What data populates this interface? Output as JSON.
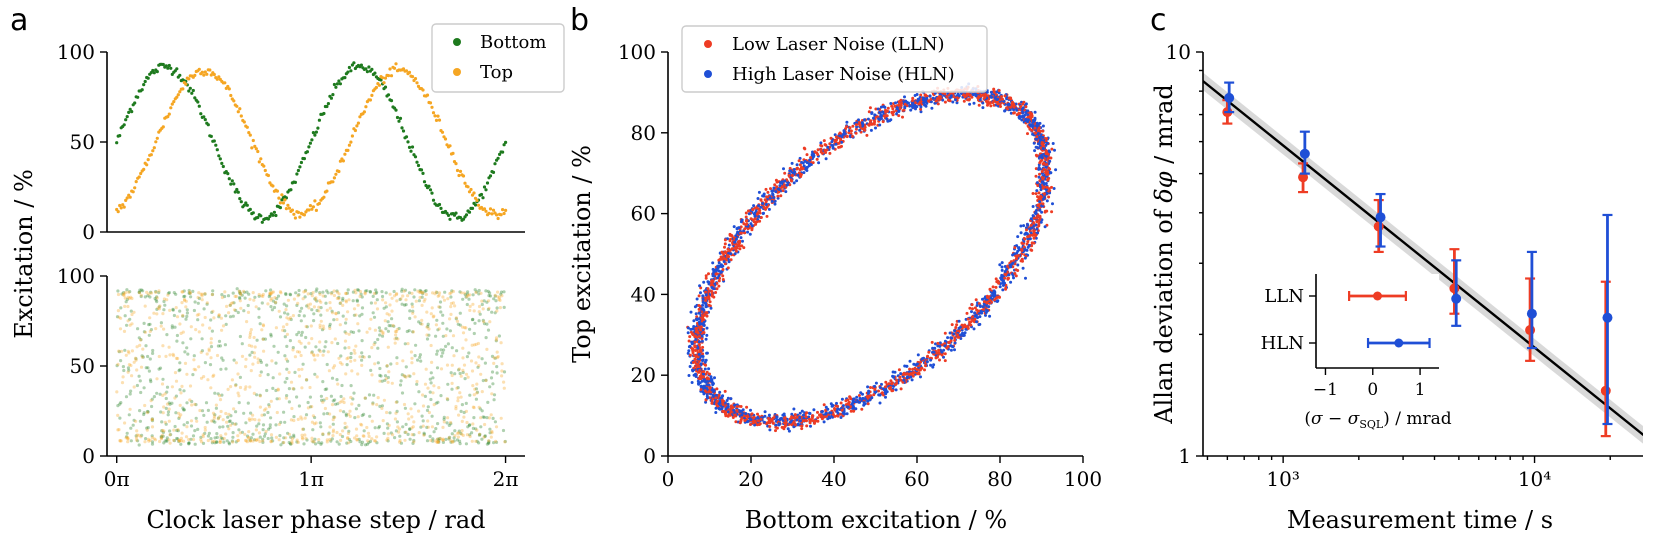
{
  "figure": {
    "panel_labels": [
      "a",
      "b",
      "c"
    ]
  },
  "colors": {
    "bottom": "#1e7a1e",
    "top": "#f5a623",
    "lln": "#ee3c24",
    "hln": "#1f4fd6",
    "fit": "#000000",
    "band": "#bfbfbf"
  },
  "chart_data": [
    {
      "id": "a-top",
      "type": "line",
      "title": "",
      "xlabel": "",
      "ylabel": "Excitation / %",
      "xlim": [
        -0.05,
        2.1
      ],
      "ylim": [
        0,
        100
      ],
      "yticks": [
        0,
        50,
        100
      ],
      "xticks": [],
      "legend": [
        "Bottom",
        "Top"
      ],
      "legend_position": "top-right",
      "series": [
        {
          "name": "Bottom",
          "offset": 50,
          "amplitude": 42,
          "phase": 0.25,
          "period": 1.0,
          "n": 260
        },
        {
          "name": "Top",
          "offset": 50,
          "amplitude": 40,
          "phase": 0.45,
          "period": 1.0,
          "n": 260
        }
      ]
    },
    {
      "id": "a-bottom",
      "type": "scatter",
      "xlabel": "Clock laser phase step / rad",
      "ylabel": "Excitation / %",
      "xlim": [
        -0.05,
        2.1
      ],
      "ylim": [
        0,
        100
      ],
      "yticks": [
        0,
        50,
        100
      ],
      "xticks": [
        0,
        1,
        2
      ],
      "xtick_labels": [
        "0π",
        "1π",
        "2π"
      ],
      "series": [
        {
          "name": "Bottom",
          "range": [
            7,
            92
          ],
          "n": 900
        },
        {
          "name": "Top",
          "range": [
            8,
            91
          ],
          "n": 900
        }
      ]
    },
    {
      "id": "b",
      "type": "scatter",
      "xlabel": "Bottom excitation / %",
      "ylabel": "Top excitation / %",
      "xlim": [
        0,
        100
      ],
      "ylim": [
        0,
        100
      ],
      "xticks": [
        0,
        20,
        40,
        60,
        80,
        100
      ],
      "yticks": [
        0,
        20,
        40,
        60,
        80,
        100
      ],
      "legend": [
        "Low Laser Noise (LLN)",
        "High Laser Noise (HLN)"
      ],
      "legend_position": "top-left",
      "ellipse": {
        "offset_x": 49,
        "amplitude_x": 42,
        "offset_y": 49,
        "amplitude_y": 40.5,
        "phase_diff_rad": 1.0
      },
      "series": [
        {
          "name": "Low Laser Noise (LLN)",
          "n": 1700,
          "noise": 0.9
        },
        {
          "name": "High Laser Noise (HLN)",
          "n": 1700,
          "noise": 1.0
        }
      ]
    },
    {
      "id": "c",
      "type": "scatter",
      "xscale": "log",
      "yscale": "log",
      "xlabel": "Measurement time / s",
      "ylabel": "Allan deviation of δφ / mrad",
      "xlim": [
        480,
        27000
      ],
      "ylim": [
        1,
        10
      ],
      "xticks": [
        1000,
        10000
      ],
      "xtick_labels": [
        "10³",
        "10⁴"
      ],
      "yticks": [
        1,
        10
      ],
      "ytick_labels": [
        "1",
        "10"
      ],
      "fit": {
        "tau0": 500,
        "y0": 8.3,
        "slope": -0.5
      },
      "series": [
        {
          "name": "LLN",
          "x": [
            600,
            1200,
            2400,
            4800,
            9600,
            19200
          ],
          "y": [
            7.1,
            4.9,
            3.7,
            2.6,
            2.05,
            1.45
          ],
          "err_low": [
            6.65,
            4.5,
            3.2,
            2.25,
            1.72,
            1.12
          ],
          "err_high": [
            7.6,
            5.3,
            4.3,
            3.25,
            2.75,
            2.7
          ]
        },
        {
          "name": "HLN",
          "x": [
            610,
            1220,
            2440,
            4880,
            9760,
            19500
          ],
          "y": [
            7.7,
            5.6,
            3.9,
            2.45,
            2.25,
            2.2
          ],
          "err_low": [
            7.1,
            5.0,
            3.3,
            2.1,
            1.85,
            1.2
          ],
          "err_high": [
            8.4,
            6.35,
            4.45,
            3.05,
            3.2,
            3.95
          ]
        }
      ],
      "inset": {
        "xlabel": "(σ − σSQL) / mrad",
        "xlim": [
          -1.2,
          1.4
        ],
        "xticks": [
          -1,
          0,
          1
        ],
        "categories": [
          "LLN",
          "HLN"
        ],
        "values": [
          0.1,
          0.55
        ],
        "err": [
          0.6,
          0.65
        ]
      }
    }
  ],
  "text": {
    "a_legend_bottom": "Bottom",
    "a_legend_top": "Top",
    "a_ylabel": "Excitation / %",
    "a_xlabel": "Clock laser phase step / rad",
    "b_legend_lln": "Low Laser Noise (LLN)",
    "b_legend_hln": "High Laser Noise (HLN)",
    "b_xlabel": "Bottom excitation / %",
    "b_ylabel": "Top excitation / %",
    "c_xlabel": "Measurement time / s",
    "c_ylabel": "Allan deviation of δφ / mrad",
    "c_inset_xlabel": "(σ − σSQL) / mrad"
  }
}
